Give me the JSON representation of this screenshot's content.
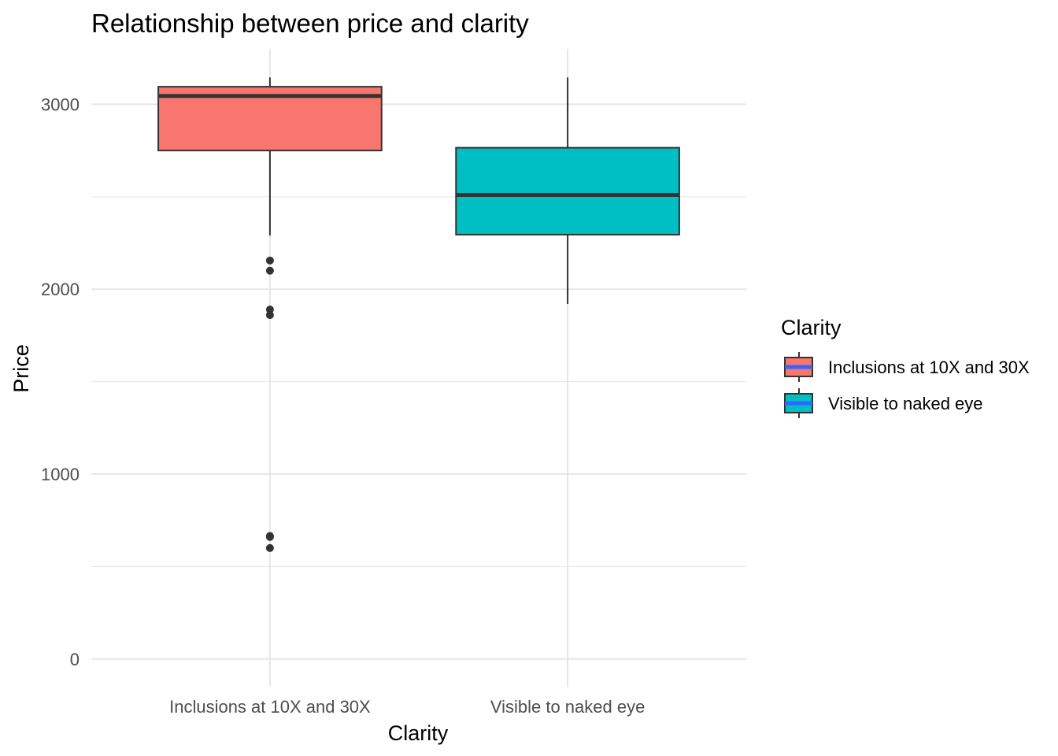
{
  "chart_data": {
    "type": "box",
    "title": "Relationship between price and clarity",
    "xlabel": "Clarity",
    "ylabel": "Price",
    "categories": [
      "Inclusions at 10X and 30X",
      "Visible to naked eye"
    ],
    "ylim": [
      -150,
      3300
    ],
    "yticks": [
      0,
      1000,
      2000,
      3000
    ],
    "grid": true,
    "legend": {
      "title": "Clarity",
      "position": "right",
      "entries": [
        "Inclusions at 10X and 30X",
        "Visible to naked eye"
      ]
    },
    "series": [
      {
        "name": "Inclusions at 10X and 30X",
        "color": "#F8766D",
        "whisker_low": 2290,
        "q1": 2750,
        "median": 3045,
        "q3": 3095,
        "whisker_high": 3145,
        "outliers": [
          2155,
          2100,
          1890,
          1860,
          665,
          660,
          600
        ]
      },
      {
        "name": "Visible to naked eye",
        "color": "#00BFC4",
        "whisker_low": 1920,
        "q1": 2295,
        "median": 2510,
        "q3": 2765,
        "whisker_high": 3145,
        "outliers": []
      }
    ]
  }
}
